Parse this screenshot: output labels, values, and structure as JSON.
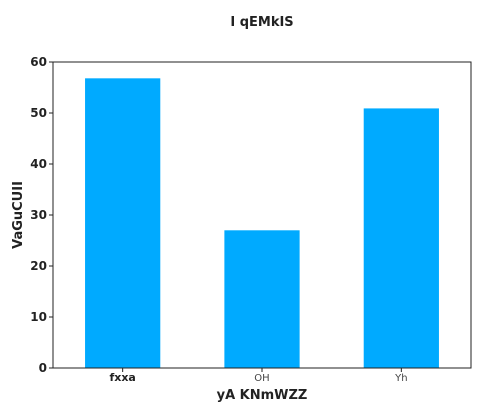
{
  "chart_data": {
    "type": "bar",
    "title": "I qEMkIS",
    "xlabel": "yA KNmWZZ",
    "ylabel": "VaGuCUII",
    "categories": [
      "fxxa",
      "OH",
      "Yh"
    ],
    "values": [
      56.8,
      27.0,
      50.9
    ],
    "ylim": [
      0,
      60
    ],
    "yticks": [
      0,
      10,
      20,
      30,
      40,
      50,
      60
    ],
    "grid": false,
    "bar_color": "#00aaff"
  }
}
